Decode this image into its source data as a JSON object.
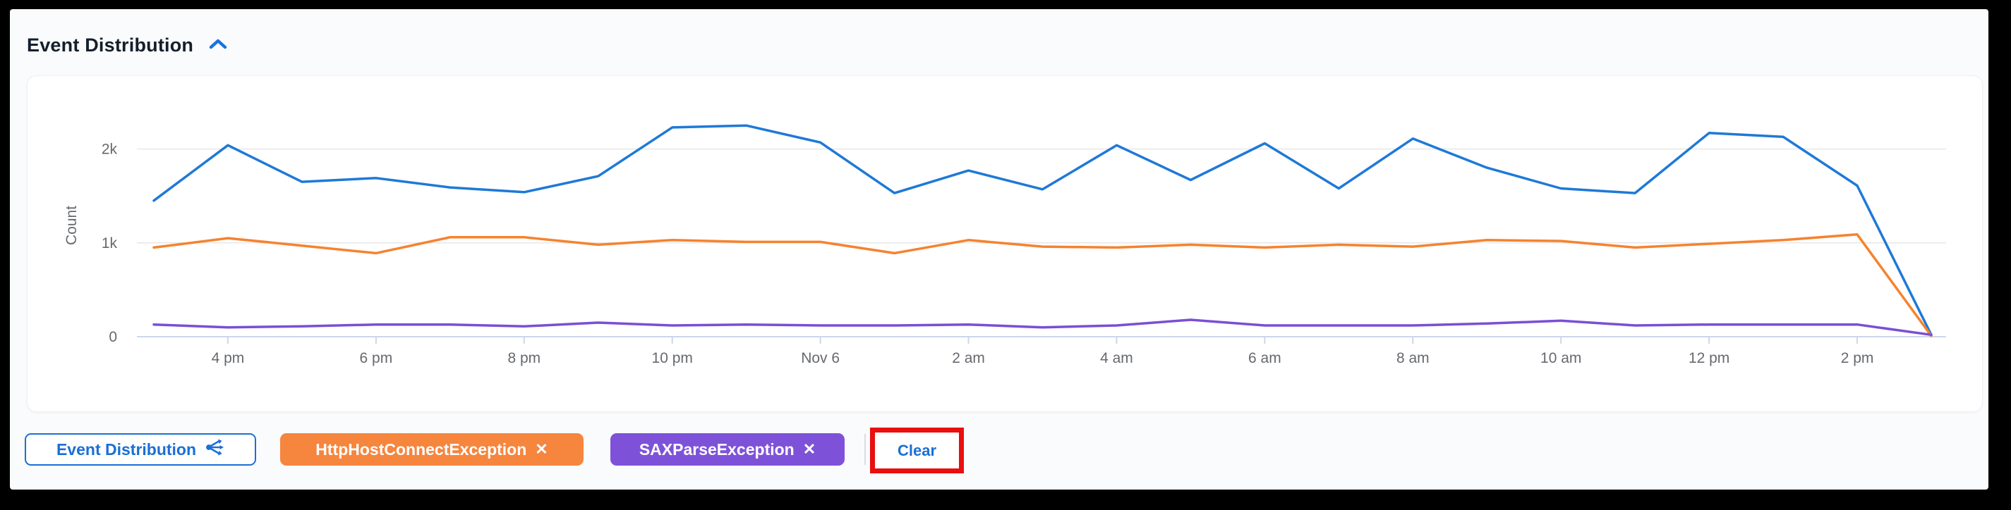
{
  "header": {
    "title": "Event Distribution",
    "collapse_icon": "chevron-up"
  },
  "chart_data": {
    "type": "line",
    "title": "Event Distribution",
    "xlabel": "",
    "ylabel": "Count",
    "ylim": [
      0,
      2500
    ],
    "grid": "horizontal",
    "legend_position": "none",
    "categories": [
      "3 pm",
      "4 pm",
      "5 pm",
      "6 pm",
      "7 pm",
      "8 pm",
      "9 pm",
      "10 pm",
      "11 pm",
      "Nov 6",
      "1 am",
      "2 am",
      "3 am",
      "4 am",
      "5 am",
      "6 am",
      "7 am",
      "8 am",
      "9 am",
      "10 am",
      "11 am",
      "12 pm",
      "1 pm",
      "2 pm",
      "3 pm"
    ],
    "x_ticks": [
      {
        "index": 1,
        "label": "4 pm"
      },
      {
        "index": 3,
        "label": "6 pm"
      },
      {
        "index": 5,
        "label": "8 pm"
      },
      {
        "index": 7,
        "label": "10 pm"
      },
      {
        "index": 9,
        "label": "Nov 6"
      },
      {
        "index": 11,
        "label": "2 am"
      },
      {
        "index": 13,
        "label": "4 am"
      },
      {
        "index": 15,
        "label": "6 am"
      },
      {
        "index": 17,
        "label": "8 am"
      },
      {
        "index": 19,
        "label": "10 am"
      },
      {
        "index": 21,
        "label": "12 pm"
      },
      {
        "index": 23,
        "label": "2 pm"
      }
    ],
    "y_ticks": [
      {
        "value": 0,
        "label": "0"
      },
      {
        "value": 1000,
        "label": "1k"
      },
      {
        "value": 2000,
        "label": "2k"
      }
    ],
    "series": [
      {
        "name": "Unlabeled (blue)",
        "color": "#1e79d7",
        "values": [
          1450,
          2040,
          1650,
          1690,
          1590,
          1540,
          1710,
          2230,
          2250,
          2070,
          1530,
          1770,
          1570,
          2040,
          1670,
          2060,
          1580,
          2110,
          1800,
          1580,
          1530,
          2170,
          2130,
          1610,
          20
        ]
      },
      {
        "name": "HttpHostConnectException",
        "color": "#f5832f",
        "values": [
          950,
          1050,
          970,
          890,
          1060,
          1060,
          980,
          1030,
          1010,
          1010,
          890,
          1030,
          960,
          950,
          980,
          950,
          980,
          960,
          1030,
          1020,
          950,
          990,
          1030,
          1090,
          10
        ]
      },
      {
        "name": "SAXParseException",
        "color": "#7a4fd4",
        "values": [
          130,
          100,
          110,
          130,
          130,
          110,
          150,
          120,
          130,
          120,
          120,
          130,
          100,
          120,
          180,
          120,
          120,
          120,
          140,
          170,
          120,
          130,
          130,
          130,
          20
        ]
      }
    ]
  },
  "chips": {
    "widget": {
      "label": "Event Distribution",
      "icon": "share-nodes"
    },
    "filters": [
      {
        "label": "HttpHostConnectException",
        "remove_icon": "✕",
        "color": "#f6853e"
      },
      {
        "label": "SAXParseException",
        "remove_icon": "✕",
        "color": "#7e52d8"
      }
    ],
    "clear_label": "Clear"
  },
  "colors": {
    "accent_blue": "#1a6fd6",
    "annotation_red": "#e8100f",
    "axis_line": "#ccd6eb",
    "gridline": "#e7e7e7",
    "tick_text": "#66696e",
    "page_bg": "#fafbfd",
    "card_bg": "#ffffff"
  }
}
